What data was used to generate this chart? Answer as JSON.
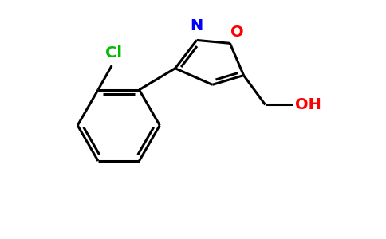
{
  "background_color": "#ffffff",
  "bond_color": "#000000",
  "cl_color": "#00bb00",
  "n_color": "#0000ff",
  "o_color": "#ff0000",
  "bond_width": 2.2,
  "figsize": [
    4.84,
    3.0
  ],
  "dpi": 100,
  "xlim": [
    0,
    9.5
  ],
  "ylim": [
    0,
    6.0
  ]
}
